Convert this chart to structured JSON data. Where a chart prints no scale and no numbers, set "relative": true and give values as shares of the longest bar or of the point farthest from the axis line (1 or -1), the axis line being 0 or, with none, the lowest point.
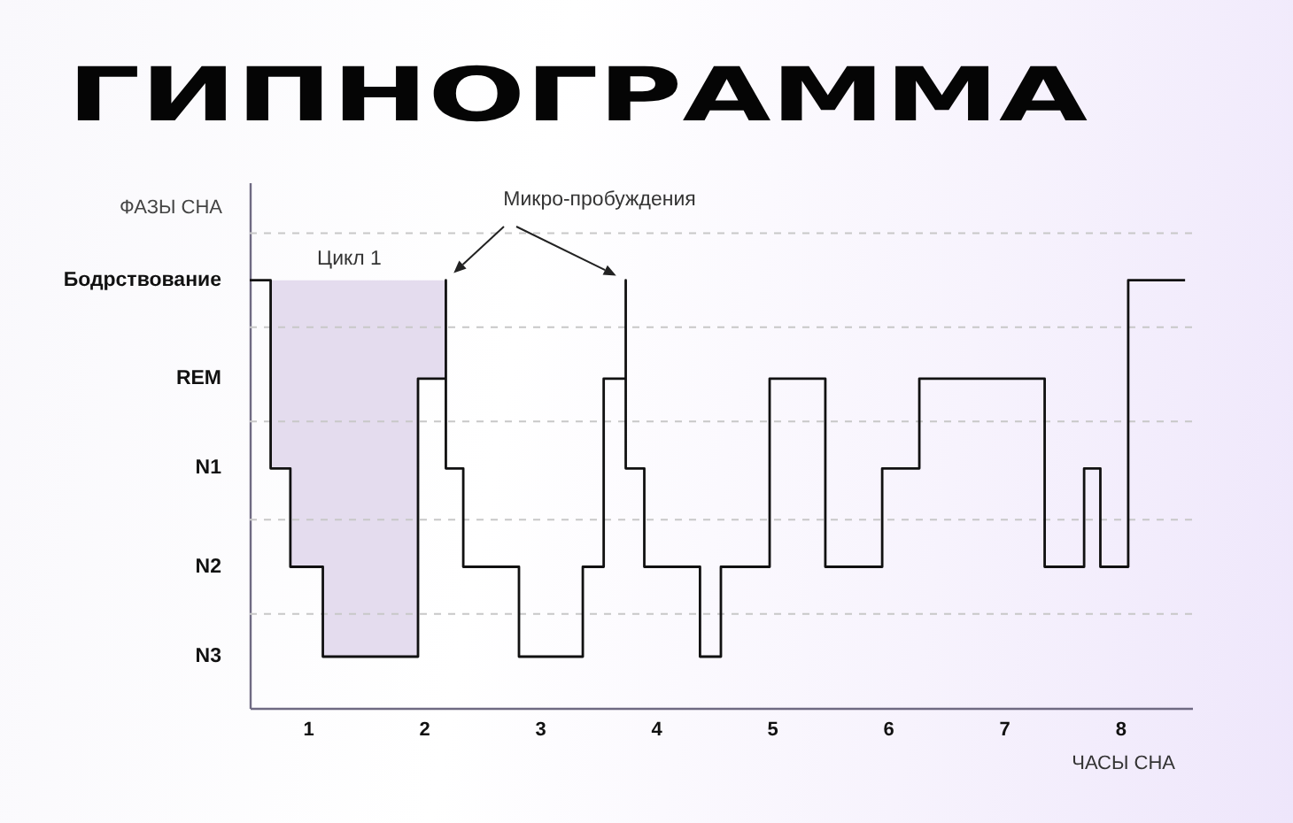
{
  "chart_data": {
    "type": "step",
    "relative": true,
    "title": "ГИПНОГРАММА",
    "xlabel": "ЧАСЫ СНА",
    "ylabel": "ФАЗЫ СНА",
    "x": [
      0.5,
      0.68,
      0.85,
      1.13,
      1.95,
      2.19,
      2.19,
      2.34,
      2.82,
      3.37,
      3.55,
      3.74,
      3.74,
      3.9,
      4.38,
      4.56,
      4.98,
      5.46,
      5.95,
      6.27,
      7.35,
      7.69,
      7.83,
      8.07,
      8.56
    ],
    "series": [
      {
        "color": "#111111",
        "values": [
          1,
          0.56,
          0.33,
          0.12,
          0.77,
          1,
          0.56,
          0.33,
          0.12,
          0.33,
          0.77,
          1,
          0.56,
          0.33,
          0.12,
          0.33,
          0.77,
          0.33,
          0.56,
          0.77,
          0.33,
          0.56,
          0.33,
          1,
          1
        ],
        "lower": [
          null,
          0.56,
          0.33,
          0.12,
          0.77,
          1,
          null,
          null,
          null,
          null,
          null,
          null,
          null,
          null,
          null,
          null,
          null,
          null,
          null,
          null,
          null,
          null,
          null,
          null,
          null
        ],
        "upper": [
          null,
          1,
          1,
          1,
          1,
          1,
          null,
          null,
          null,
          null,
          null,
          null,
          null,
          null,
          null,
          null,
          null,
          null,
          null,
          null,
          null,
          null,
          null,
          null,
          null
        ]
      }
    ],
    "xlim": [
      0.5,
      8.62
    ],
    "xticks": [
      1,
      2,
      3,
      4,
      5,
      6,
      7,
      8
    ],
    "ref_lines": [
      {
        "axis": "y",
        "value": 1.11,
        "color": "#c8c8c8",
        "line_style": "dashed"
      },
      {
        "axis": "y",
        "value": 0.89,
        "color": "#c8c8c8",
        "line_style": "dashed"
      },
      {
        "axis": "y",
        "value": 0.67,
        "color": "#c8c8c8",
        "line_style": "dashed"
      },
      {
        "axis": "y",
        "value": 0.44,
        "color": "#c8c8c8",
        "line_style": "dashed"
      },
      {
        "axis": "y",
        "value": 0.22,
        "color": "#c8c8c8",
        "line_style": "dashed"
      }
    ],
    "annotations": [
      "Бодрствование",
      "REM",
      "N1",
      "N2",
      "N3",
      "Цикл 1",
      "Микро-пробуждения"
    ]
  }
}
